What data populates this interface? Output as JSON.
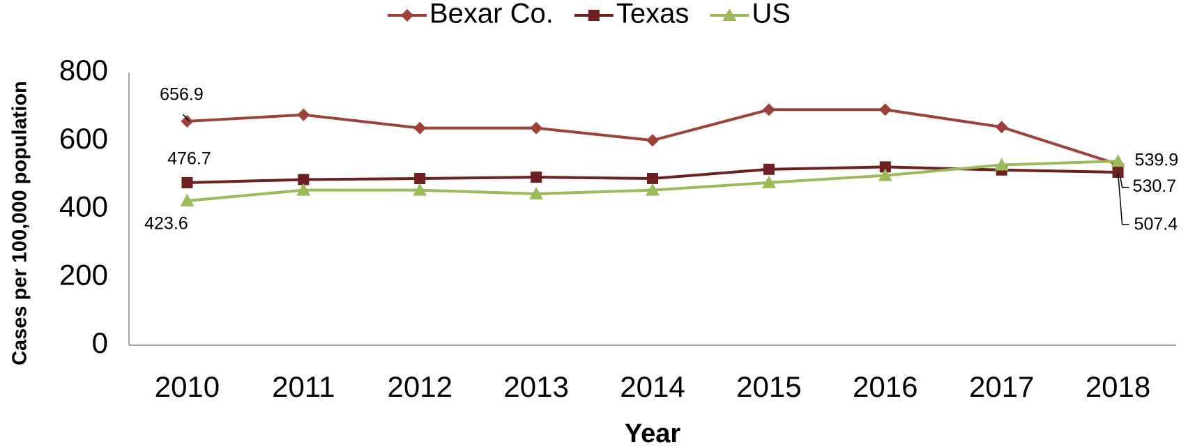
{
  "chart_data": {
    "type": "line",
    "categories": [
      "2010",
      "2011",
      "2012",
      "2013",
      "2014",
      "2015",
      "2016",
      "2017",
      "2018"
    ],
    "series": [
      {
        "name": "Bexar Co.",
        "color": "#a0403a",
        "marker": "diamond",
        "values": [
          656.9,
          676,
          637,
          637,
          601,
          691,
          691,
          640,
          530.7
        ],
        "value_labels": [
          "656.9",
          null,
          null,
          null,
          null,
          null,
          null,
          null,
          "530.7"
        ]
      },
      {
        "name": "Texas",
        "color": "#6e2020",
        "marker": "square",
        "values": [
          476.7,
          486,
          489,
          493,
          489,
          516,
          523,
          514,
          507.4
        ],
        "value_labels": [
          "476.7",
          null,
          null,
          null,
          null,
          null,
          null,
          null,
          "507.4"
        ]
      },
      {
        "name": "US",
        "color": "#9bbb59",
        "marker": "triangle",
        "values": [
          423.6,
          455,
          455,
          444,
          455,
          477,
          498,
          529,
          539.9
        ],
        "value_labels": [
          "423.6",
          null,
          null,
          null,
          null,
          null,
          null,
          null,
          "539.9"
        ]
      }
    ],
    "x_label": "Year",
    "y_label": "Cases per 100,000 population",
    "ylim": [
      0,
      800
    ],
    "yticks": [
      0,
      200,
      400,
      600,
      800
    ],
    "grid": false,
    "legend": "top"
  }
}
